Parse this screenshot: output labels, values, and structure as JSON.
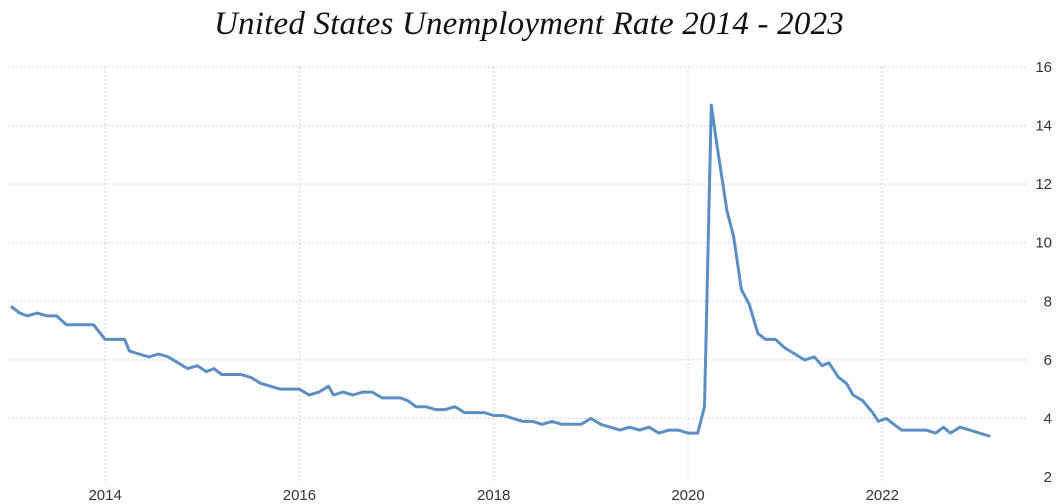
{
  "chart_data": {
    "type": "line",
    "title": "United States Unemployment Rate 2014 - 2023",
    "xlabel": "",
    "ylabel": "",
    "xlim": [
      2013.0,
      2023.5
    ],
    "ylim": [
      2,
      16
    ],
    "x_ticks": [
      2014,
      2016,
      2018,
      2020,
      2022
    ],
    "x_tick_labels": [
      "2014",
      "2016",
      "2018",
      "2020",
      "2022"
    ],
    "y_ticks": [
      2,
      4,
      6,
      8,
      10,
      12,
      14,
      16
    ],
    "y_tick_labels": [
      "2",
      "4",
      "6",
      "8",
      "10",
      "12",
      "14",
      "16"
    ],
    "y_axis_side": "right",
    "grid": true,
    "line_color": "#5b8fc4",
    "series": [
      {
        "points": [
          [
            2013.04,
            7.8
          ],
          [
            2013.12,
            7.6
          ],
          [
            2013.2,
            7.5
          ],
          [
            2013.3,
            7.6
          ],
          [
            2013.4,
            7.5
          ],
          [
            2013.5,
            7.5
          ],
          [
            2013.6,
            7.2
          ],
          [
            2013.75,
            7.2
          ],
          [
            2013.88,
            7.2
          ],
          [
            2014.0,
            6.7
          ],
          [
            2014.1,
            6.7
          ],
          [
            2014.2,
            6.7
          ],
          [
            2014.25,
            6.3
          ],
          [
            2014.35,
            6.2
          ],
          [
            2014.45,
            6.1
          ],
          [
            2014.55,
            6.2
          ],
          [
            2014.65,
            6.1
          ],
          [
            2014.75,
            5.9
          ],
          [
            2014.85,
            5.7
          ],
          [
            2014.95,
            5.8
          ],
          [
            2015.04,
            5.6
          ],
          [
            2015.12,
            5.7
          ],
          [
            2015.2,
            5.5
          ],
          [
            2015.3,
            5.5
          ],
          [
            2015.4,
            5.5
          ],
          [
            2015.5,
            5.4
          ],
          [
            2015.6,
            5.2
          ],
          [
            2015.7,
            5.1
          ],
          [
            2015.8,
            5.0
          ],
          [
            2015.9,
            5.0
          ],
          [
            2016.0,
            5.0
          ],
          [
            2016.1,
            4.8
          ],
          [
            2016.2,
            4.9
          ],
          [
            2016.3,
            5.1
          ],
          [
            2016.35,
            4.8
          ],
          [
            2016.45,
            4.9
          ],
          [
            2016.55,
            4.8
          ],
          [
            2016.65,
            4.9
          ],
          [
            2016.75,
            4.9
          ],
          [
            2016.85,
            4.7
          ],
          [
            2016.95,
            4.7
          ],
          [
            2017.04,
            4.7
          ],
          [
            2017.12,
            4.6
          ],
          [
            2017.2,
            4.4
          ],
          [
            2017.3,
            4.4
          ],
          [
            2017.4,
            4.3
          ],
          [
            2017.5,
            4.3
          ],
          [
            2017.6,
            4.4
          ],
          [
            2017.7,
            4.2
          ],
          [
            2017.8,
            4.2
          ],
          [
            2017.9,
            4.2
          ],
          [
            2018.0,
            4.1
          ],
          [
            2018.1,
            4.1
          ],
          [
            2018.2,
            4.0
          ],
          [
            2018.3,
            3.9
          ],
          [
            2018.4,
            3.9
          ],
          [
            2018.5,
            3.8
          ],
          [
            2018.6,
            3.9
          ],
          [
            2018.7,
            3.8
          ],
          [
            2018.8,
            3.8
          ],
          [
            2018.9,
            3.8
          ],
          [
            2019.0,
            4.0
          ],
          [
            2019.1,
            3.8
          ],
          [
            2019.2,
            3.7
          ],
          [
            2019.3,
            3.6
          ],
          [
            2019.4,
            3.7
          ],
          [
            2019.5,
            3.6
          ],
          [
            2019.6,
            3.7
          ],
          [
            2019.7,
            3.5
          ],
          [
            2019.8,
            3.6
          ],
          [
            2019.9,
            3.6
          ],
          [
            2020.0,
            3.5
          ],
          [
            2020.1,
            3.5
          ],
          [
            2020.17,
            4.4
          ],
          [
            2020.24,
            14.7
          ],
          [
            2020.3,
            13.3
          ],
          [
            2020.4,
            11.1
          ],
          [
            2020.47,
            10.2
          ],
          [
            2020.55,
            8.4
          ],
          [
            2020.63,
            7.9
          ],
          [
            2020.72,
            6.9
          ],
          [
            2020.8,
            6.7
          ],
          [
            2020.9,
            6.7
          ],
          [
            2021.0,
            6.4
          ],
          [
            2021.1,
            6.2
          ],
          [
            2021.2,
            6.0
          ],
          [
            2021.3,
            6.1
          ],
          [
            2021.38,
            5.8
          ],
          [
            2021.45,
            5.9
          ],
          [
            2021.55,
            5.4
          ],
          [
            2021.63,
            5.2
          ],
          [
            2021.7,
            4.8
          ],
          [
            2021.8,
            4.6
          ],
          [
            2021.9,
            4.2
          ],
          [
            2021.96,
            3.9
          ],
          [
            2022.04,
            4.0
          ],
          [
            2022.12,
            3.8
          ],
          [
            2022.2,
            3.6
          ],
          [
            2022.3,
            3.6
          ],
          [
            2022.45,
            3.6
          ],
          [
            2022.55,
            3.5
          ],
          [
            2022.63,
            3.7
          ],
          [
            2022.7,
            3.5
          ],
          [
            2022.8,
            3.7
          ],
          [
            2022.9,
            3.6
          ],
          [
            2023.0,
            3.5
          ],
          [
            2023.1,
            3.4
          ]
        ]
      }
    ]
  }
}
